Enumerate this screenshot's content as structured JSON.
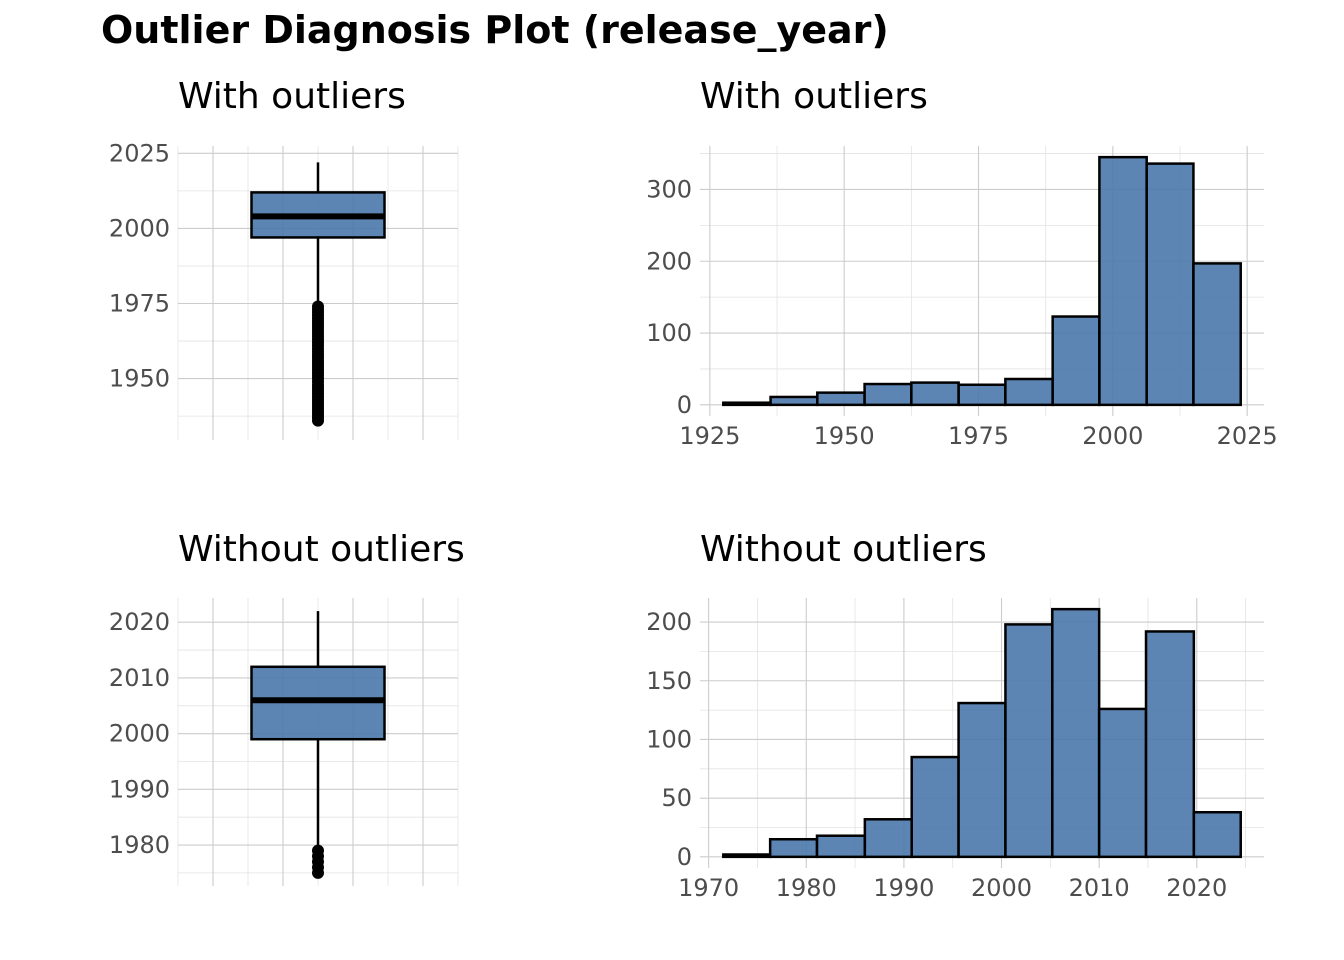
{
  "title": "Outlier Diagnosis Plot (release_year)",
  "colors": {
    "fill": "#4a78ab",
    "stroke": "#000000",
    "grid": "#cccccc",
    "tick_text": "#4d4d4d"
  },
  "chart_data": [
    {
      "type": "boxplot",
      "title": "With outliers",
      "ylim": [
        1934,
        2023
      ],
      "yticks": [
        1950,
        1975,
        2000,
        2025
      ],
      "stats": {
        "lower_whisker": 1975,
        "q1": 1997,
        "median": 2004,
        "q3": 2012,
        "upper_whisker": 2022
      },
      "outliers": [
        1974,
        1973,
        1972,
        1971,
        1970,
        1969,
        1968,
        1967,
        1966,
        1965,
        1964,
        1963,
        1962,
        1961,
        1960,
        1959,
        1958,
        1957,
        1956,
        1955,
        1954,
        1953,
        1952,
        1951,
        1950,
        1949,
        1948,
        1947,
        1946,
        1945,
        1944,
        1943,
        1942,
        1941,
        1940,
        1939,
        1938,
        1937,
        1936
      ]
    },
    {
      "type": "bar",
      "title": "With outliers",
      "xlim": [
        1925,
        2025
      ],
      "xticks": [
        1925,
        1950,
        1975,
        2000,
        2025
      ],
      "ylim": [
        0,
        345
      ],
      "yticks": [
        0,
        100,
        200,
        300
      ],
      "bins": [
        {
          "x0": 1927.5,
          "x1": 1936.3,
          "count": 3
        },
        {
          "x0": 1936.3,
          "x1": 1945.0,
          "count": 11
        },
        {
          "x0": 1945.0,
          "x1": 1953.8,
          "count": 17
        },
        {
          "x0": 1953.8,
          "x1": 1962.5,
          "count": 29
        },
        {
          "x0": 1962.5,
          "x1": 1971.3,
          "count": 31
        },
        {
          "x0": 1971.3,
          "x1": 1980.0,
          "count": 28
        },
        {
          "x0": 1980.0,
          "x1": 1988.8,
          "count": 36
        },
        {
          "x0": 1988.8,
          "x1": 1997.5,
          "count": 123
        },
        {
          "x0": 1997.5,
          "x1": 2006.3,
          "count": 345
        },
        {
          "x0": 2006.3,
          "x1": 2015.0,
          "count": 336
        },
        {
          "x0": 2015.0,
          "x1": 2023.8,
          "count": 197
        }
      ]
    },
    {
      "type": "boxplot",
      "title": "Without outliers",
      "ylim": [
        1975,
        2022
      ],
      "yticks": [
        1980,
        1990,
        2000,
        2010,
        2020
      ],
      "stats": {
        "lower_whisker": 1979.2,
        "q1": 1999,
        "median": 2006,
        "q3": 2012,
        "upper_whisker": 2022
      },
      "outliers": [
        1979,
        1978,
        1977,
        1976,
        1975
      ]
    },
    {
      "type": "bar",
      "title": "Without outliers",
      "xlim": [
        1970,
        2020
      ],
      "xticks": [
        1970,
        1980,
        1990,
        2000,
        2010,
        2020
      ],
      "ylim": [
        0,
        211
      ],
      "yticks": [
        0,
        50,
        100,
        150,
        200
      ],
      "bins": [
        {
          "x0": 1971.5,
          "x1": 1976.3,
          "count": 2
        },
        {
          "x0": 1976.3,
          "x1": 1981.1,
          "count": 15
        },
        {
          "x0": 1981.1,
          "x1": 1986.0,
          "count": 18
        },
        {
          "x0": 1986.0,
          "x1": 1990.8,
          "count": 32
        },
        {
          "x0": 1990.8,
          "x1": 1995.6,
          "count": 85
        },
        {
          "x0": 1995.6,
          "x1": 2000.4,
          "count": 131
        },
        {
          "x0": 2000.4,
          "x1": 2005.2,
          "count": 198
        },
        {
          "x0": 2005.2,
          "x1": 2010.0,
          "count": 211
        },
        {
          "x0": 2010.0,
          "x1": 2014.8,
          "count": 126
        },
        {
          "x0": 2014.8,
          "x1": 2019.7,
          "count": 192
        },
        {
          "x0": 2019.7,
          "x1": 2024.5,
          "count": 38
        }
      ]
    }
  ]
}
